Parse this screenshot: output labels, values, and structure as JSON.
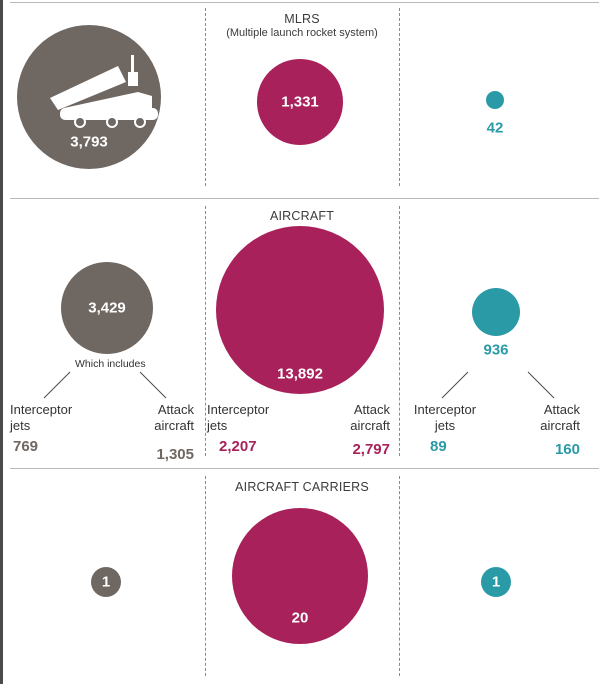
{
  "colors": {
    "russia": "#6f6762",
    "usa": "#a8215a",
    "other": "#2a9aa7",
    "rule": "#b9b9b9"
  },
  "chart_data": [
    {
      "type": "bubble",
      "title": "MLRS",
      "subtitle": "(Multiple launch rocket system)",
      "icon": "rocket-launcher-truck-icon",
      "values": [
        {
          "label": "3,793",
          "value": 3793
        },
        {
          "label": "1,331",
          "value": 1331
        },
        {
          "label": "42",
          "value": 42
        }
      ]
    },
    {
      "type": "bubble",
      "title": "AIRCRAFT",
      "icon": "fighter-jet-icon",
      "values": [
        {
          "label": "3,429",
          "value": 3429,
          "note": "Which includes",
          "breakdown": [
            {
              "name": "Interceptor jets",
              "label": "769",
              "value": 769
            },
            {
              "name": "Attack aircraft",
              "label": "1,305",
              "value": 1305
            }
          ]
        },
        {
          "label": "13,892",
          "value": 13892,
          "breakdown": [
            {
              "name": "Interceptor jets",
              "label": "2,207",
              "value": 2207
            },
            {
              "name": "Attack aircraft",
              "label": "2,797",
              "value": 2797
            }
          ]
        },
        {
          "label": "936",
          "value": 936,
          "breakdown": [
            {
              "name": "Interceptor jets",
              "label": "89",
              "value": 89
            },
            {
              "name": "Attack aircraft",
              "label": "160",
              "value": 160
            }
          ]
        }
      ]
    },
    {
      "type": "bubble",
      "title": "AIRCRAFT CARRIERS",
      "icon": "aircraft-carrier-icon",
      "values": [
        {
          "label": "1",
          "value": 1
        },
        {
          "label": "20",
          "value": 20
        },
        {
          "label": "1",
          "value": 1
        }
      ]
    }
  ]
}
